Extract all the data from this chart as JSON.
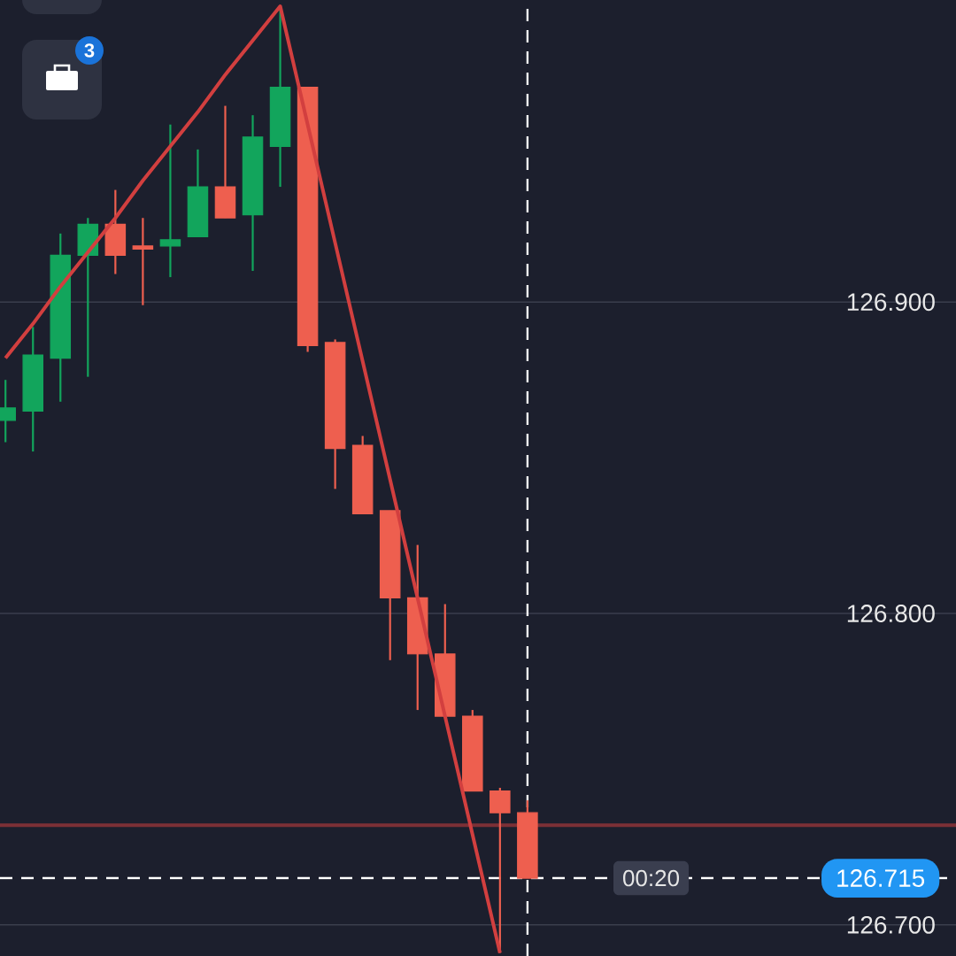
{
  "chart_data": {
    "type": "candlestick",
    "categories": [
      null,
      null,
      null,
      null,
      null,
      null,
      null,
      null,
      null,
      null,
      null,
      null,
      null,
      null,
      null,
      null,
      null,
      null,
      null,
      null
    ],
    "ohlc": [
      [
        126.862,
        126.875,
        126.855,
        126.866
      ],
      [
        126.865,
        126.892,
        126.852,
        126.883
      ],
      [
        126.882,
        126.922,
        126.868,
        126.915
      ],
      [
        126.915,
        126.927,
        126.876,
        126.925
      ],
      [
        126.925,
        126.936,
        126.909,
        126.915
      ],
      [
        126.918,
        126.927,
        126.899,
        126.917
      ],
      [
        126.918,
        126.957,
        126.908,
        126.92
      ],
      [
        126.921,
        126.949,
        126.921,
        126.937
      ],
      [
        126.937,
        126.963,
        126.927,
        126.927
      ],
      [
        126.928,
        126.96,
        126.91,
        126.953
      ],
      [
        126.95,
        126.994,
        126.937,
        126.969
      ],
      [
        126.969,
        126.969,
        126.884,
        126.886
      ],
      [
        126.887,
        126.888,
        126.84,
        126.853
      ],
      [
        126.854,
        126.857,
        126.832,
        126.832
      ],
      [
        126.833,
        126.833,
        126.785,
        126.805
      ],
      [
        126.805,
        126.822,
        126.769,
        126.787
      ],
      [
        126.787,
        126.803,
        126.767,
        126.767
      ],
      [
        126.767,
        126.769,
        126.743,
        126.743
      ],
      [
        126.743,
        126.744,
        126.691,
        126.736
      ],
      [
        126.736,
        126.74,
        126.715,
        126.715
      ]
    ],
    "colors": [
      "#12a55c",
      "#12a55c",
      "#12a55c",
      "#12a55c",
      "#ee5f4f",
      "#ee5f4f",
      "#12a55c",
      "#12a55c",
      "#ee5f4f",
      "#12a55c",
      "#12a55c",
      "#ee5f4f",
      "#ee5f4f",
      "#ee5f4f",
      "#ee5f4f",
      "#ee5f4f",
      "#ee5f4f",
      "#ee5f4f",
      "#ee5f4f",
      "#ee5f4f"
    ],
    "series": [
      {
        "type": "line",
        "values": [
          126.882,
          126.893,
          126.905,
          126.916,
          126.927,
          126.939,
          126.95,
          126.961,
          126.973,
          126.984,
          126.995,
          126.957,
          126.919,
          126.881,
          126.843,
          126.805,
          126.767,
          126.729,
          126.691,
          null
        ],
        "color": "#d23f3f"
      }
    ],
    "ylim": [
      126.69,
      126.997
    ],
    "yticks": [
      {
        "value": 126.7,
        "label": "126.700"
      },
      {
        "value": 126.8,
        "label": "126.800"
      },
      {
        "value": 126.9,
        "label": "126.900"
      }
    ],
    "tick_labels": "y",
    "grid": "y",
    "ref_lines": [
      {
        "axis": "y",
        "value": 126.715,
        "label": "126.715",
        "color": "#ffffff",
        "line_style": "dashed"
      },
      {
        "axis": "y",
        "value": 126.732,
        "color": "#7c3036",
        "line_style": "solid"
      }
    ],
    "annotations": [
      "3",
      "00:20"
    ]
  }
}
